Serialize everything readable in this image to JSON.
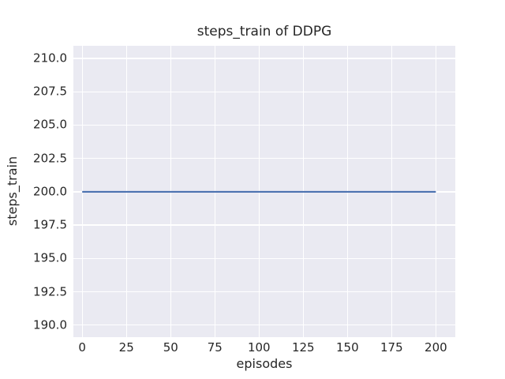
{
  "chart_data": {
    "type": "line",
    "title": "steps_train of DDPG",
    "xlabel": "episodes",
    "ylabel": "steps_train",
    "series": [
      {
        "name": "steps_train",
        "x": [
          0,
          200
        ],
        "y": [
          200,
          200
        ],
        "color": "#4c72b0",
        "line_width": 2.2
      }
    ],
    "xticks": {
      "values": [
        0,
        25,
        50,
        75,
        100,
        125,
        150,
        175,
        200
      ],
      "labels": [
        "0",
        "25",
        "50",
        "75",
        "100",
        "125",
        "150",
        "175",
        "200"
      ]
    },
    "yticks": {
      "values": [
        190.0,
        192.5,
        195.0,
        197.5,
        200.0,
        202.5,
        205.0,
        207.5,
        210.0
      ],
      "labels": [
        "190.0",
        "192.5",
        "195.0",
        "197.5",
        "200.0",
        "202.5",
        "205.0",
        "207.5",
        "210.0"
      ]
    },
    "xlim": [
      -5.0,
      211.0
    ],
    "ylim": [
      189.1,
      210.95
    ],
    "grid": true,
    "legend": false,
    "colors": {
      "figure_background": "#ffffff",
      "plot_background": "#eaeaf2",
      "grid": "#ffffff",
      "text": "#262626"
    }
  }
}
